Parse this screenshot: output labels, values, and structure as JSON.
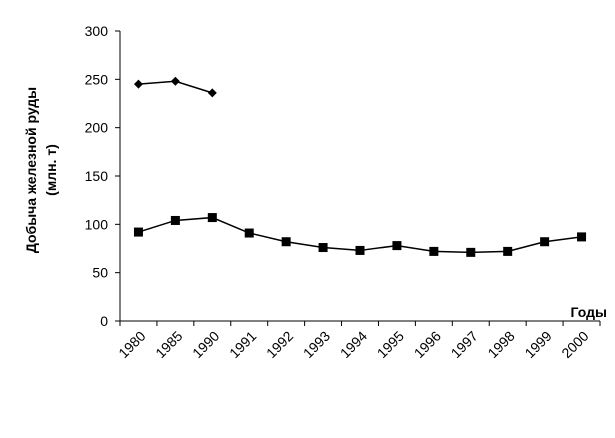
{
  "chart_data": {
    "type": "line",
    "title": "",
    "xlabel": "Годы",
    "ylabel_line1": "Добыча железной руды",
    "ylabel_line2": "(млн. т)",
    "categories": [
      "1980",
      "1985",
      "1990",
      "1991",
      "1992",
      "1993",
      "1994",
      "1995",
      "1996",
      "1997",
      "1998",
      "1999",
      "2000"
    ],
    "ylim": [
      0,
      300
    ],
    "yticks": [
      0,
      50,
      100,
      150,
      200,
      250,
      300
    ],
    "grid": false,
    "legend": "none",
    "series": [
      {
        "marker": "diamond",
        "color": "#000000",
        "values": [
          245,
          248,
          236,
          null,
          null,
          null,
          null,
          null,
          null,
          null,
          null,
          null,
          null
        ]
      },
      {
        "marker": "square",
        "color": "#000000",
        "values": [
          92,
          104,
          107,
          91,
          82,
          76,
          73,
          78,
          72,
          71,
          72,
          82,
          87
        ]
      }
    ]
  }
}
